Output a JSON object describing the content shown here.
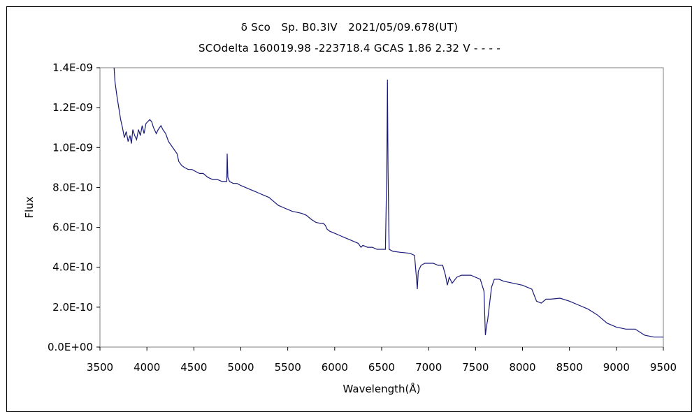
{
  "chart_data": {
    "type": "line",
    "title": "δ Sco　Sp. B0.3IV　2021/05/09.678(UT)",
    "subtitle": "SCOdelta 160019.98 -223718.4 GCAS 1.86 2.32 V - - - -",
    "xlabel": "Wavelength(Å)",
    "ylabel": "Flux",
    "xlim": [
      3500,
      9500
    ],
    "ylim": [
      0,
      1.4e-09
    ],
    "x_ticks": [
      3500,
      4000,
      4500,
      5000,
      5500,
      6000,
      6500,
      7000,
      7500,
      8000,
      8500,
      9000,
      9500
    ],
    "x_tick_labels": [
      "3500",
      "4000",
      "4500",
      "5000",
      "5500",
      "6000",
      "6500",
      "7000",
      "7500",
      "8000",
      "8500",
      "9000",
      "9500"
    ],
    "y_ticks": [
      0,
      2e-10,
      4e-10,
      6e-10,
      8e-10,
      1e-09,
      1.2e-09,
      1.4e-09
    ],
    "y_tick_labels": [
      "0.0E+00",
      "2.0E-10",
      "4.0E-10",
      "6.0E-10",
      "8.0E-10",
      "1.0E-09",
      "1.2E-09",
      "1.4E-09"
    ],
    "grid": false,
    "legend": "none",
    "line_color": "#1a1a7a",
    "series": [
      {
        "points": [
          [
            3650,
            1.4e-09
          ],
          [
            3660,
            1.33e-09
          ],
          [
            3680,
            1.26e-09
          ],
          [
            3700,
            1.2e-09
          ],
          [
            3720,
            1.14e-09
          ],
          [
            3740,
            1.1e-09
          ],
          [
            3760,
            1.05e-09
          ],
          [
            3780,
            1.08e-09
          ],
          [
            3800,
            1.03e-09
          ],
          [
            3820,
            1.06e-09
          ],
          [
            3835,
            1.02e-09
          ],
          [
            3850,
            1.09e-09
          ],
          [
            3870,
            1.06e-09
          ],
          [
            3890,
            1.04e-09
          ],
          [
            3910,
            1.09e-09
          ],
          [
            3930,
            1.06e-09
          ],
          [
            3950,
            1.11e-09
          ],
          [
            3970,
            1.07e-09
          ],
          [
            3990,
            1.12e-09
          ],
          [
            4010,
            1.13e-09
          ],
          [
            4030,
            1.14e-09
          ],
          [
            4050,
            1.13e-09
          ],
          [
            4070,
            1.1e-09
          ],
          [
            4100,
            1.07e-09
          ],
          [
            4120,
            1.09e-09
          ],
          [
            4150,
            1.11e-09
          ],
          [
            4170,
            1.09e-09
          ],
          [
            4200,
            1.07e-09
          ],
          [
            4230,
            1.03e-09
          ],
          [
            4260,
            1.01e-09
          ],
          [
            4290,
            9.9e-10
          ],
          [
            4320,
            9.7e-10
          ],
          [
            4340,
            9.3e-10
          ],
          [
            4370,
            9.1e-10
          ],
          [
            4400,
            9e-10
          ],
          [
            4440,
            8.9e-10
          ],
          [
            4480,
            8.9e-10
          ],
          [
            4520,
            8.8e-10
          ],
          [
            4560,
            8.7e-10
          ],
          [
            4600,
            8.7e-10
          ],
          [
            4650,
            8.5e-10
          ],
          [
            4700,
            8.4e-10
          ],
          [
            4750,
            8.4e-10
          ],
          [
            4800,
            8.3e-10
          ],
          [
            4830,
            8.3e-10
          ],
          [
            4850,
            8.3e-10
          ],
          [
            4855,
            9.7e-10
          ],
          [
            4862,
            8.5e-10
          ],
          [
            4880,
            8.3e-10
          ],
          [
            4920,
            8.2e-10
          ],
          [
            4960,
            8.2e-10
          ],
          [
            5000,
            8.1e-10
          ],
          [
            5050,
            8e-10
          ],
          [
            5100,
            7.9e-10
          ],
          [
            5150,
            7.8e-10
          ],
          [
            5200,
            7.7e-10
          ],
          [
            5250,
            7.6e-10
          ],
          [
            5300,
            7.5e-10
          ],
          [
            5350,
            7.3e-10
          ],
          [
            5400,
            7.1e-10
          ],
          [
            5450,
            7e-10
          ],
          [
            5500,
            6.9e-10
          ],
          [
            5550,
            6.8e-10
          ],
          [
            5600,
            6.75e-10
          ],
          [
            5650,
            6.7e-10
          ],
          [
            5700,
            6.6e-10
          ],
          [
            5750,
            6.4e-10
          ],
          [
            5800,
            6.25e-10
          ],
          [
            5850,
            6.2e-10
          ],
          [
            5880,
            6.2e-10
          ],
          [
            5900,
            6.1e-10
          ],
          [
            5920,
            5.9e-10
          ],
          [
            5950,
            5.8e-10
          ],
          [
            6000,
            5.7e-10
          ],
          [
            6050,
            5.6e-10
          ],
          [
            6100,
            5.5e-10
          ],
          [
            6150,
            5.4e-10
          ],
          [
            6200,
            5.3e-10
          ],
          [
            6250,
            5.2e-10
          ],
          [
            6280,
            5e-10
          ],
          [
            6300,
            5.1e-10
          ],
          [
            6350,
            5e-10
          ],
          [
            6400,
            5e-10
          ],
          [
            6450,
            4.9e-10
          ],
          [
            6500,
            4.9e-10
          ],
          [
            6540,
            4.9e-10
          ],
          [
            6555,
            9e-10
          ],
          [
            6562,
            1.34e-09
          ],
          [
            6568,
            9e-10
          ],
          [
            6580,
            4.9e-10
          ],
          [
            6620,
            4.8e-10
          ],
          [
            6700,
            4.75e-10
          ],
          [
            6800,
            4.7e-10
          ],
          [
            6850,
            4.6e-10
          ],
          [
            6870,
            3.5e-10
          ],
          [
            6880,
            2.9e-10
          ],
          [
            6890,
            3.8e-10
          ],
          [
            6920,
            4.1e-10
          ],
          [
            6960,
            4.2e-10
          ],
          [
            7000,
            4.2e-10
          ],
          [
            7050,
            4.2e-10
          ],
          [
            7100,
            4.1e-10
          ],
          [
            7150,
            4.1e-10
          ],
          [
            7180,
            3.6e-10
          ],
          [
            7200,
            3.1e-10
          ],
          [
            7220,
            3.5e-10
          ],
          [
            7250,
            3.2e-10
          ],
          [
            7300,
            3.5e-10
          ],
          [
            7350,
            3.6e-10
          ],
          [
            7400,
            3.6e-10
          ],
          [
            7450,
            3.6e-10
          ],
          [
            7500,
            3.5e-10
          ],
          [
            7550,
            3.4e-10
          ],
          [
            7590,
            2.8e-10
          ],
          [
            7605,
            6e-11
          ],
          [
            7615,
            1e-10
          ],
          [
            7630,
            1.4e-10
          ],
          [
            7650,
            2.2e-10
          ],
          [
            7670,
            3e-10
          ],
          [
            7700,
            3.4e-10
          ],
          [
            7750,
            3.4e-10
          ],
          [
            7800,
            3.3e-10
          ],
          [
            7900,
            3.2e-10
          ],
          [
            8000,
            3.1e-10
          ],
          [
            8100,
            2.9e-10
          ],
          [
            8150,
            2.3e-10
          ],
          [
            8200,
            2.2e-10
          ],
          [
            8250,
            2.4e-10
          ],
          [
            8300,
            2.4e-10
          ],
          [
            8400,
            2.45e-10
          ],
          [
            8500,
            2.3e-10
          ],
          [
            8600,
            2.1e-10
          ],
          [
            8700,
            1.9e-10
          ],
          [
            8800,
            1.6e-10
          ],
          [
            8900,
            1.2e-10
          ],
          [
            9000,
            1e-10
          ],
          [
            9100,
            9e-11
          ],
          [
            9200,
            9e-11
          ],
          [
            9300,
            6e-11
          ],
          [
            9400,
            5e-11
          ],
          [
            9500,
            5e-11
          ]
        ]
      }
    ]
  }
}
